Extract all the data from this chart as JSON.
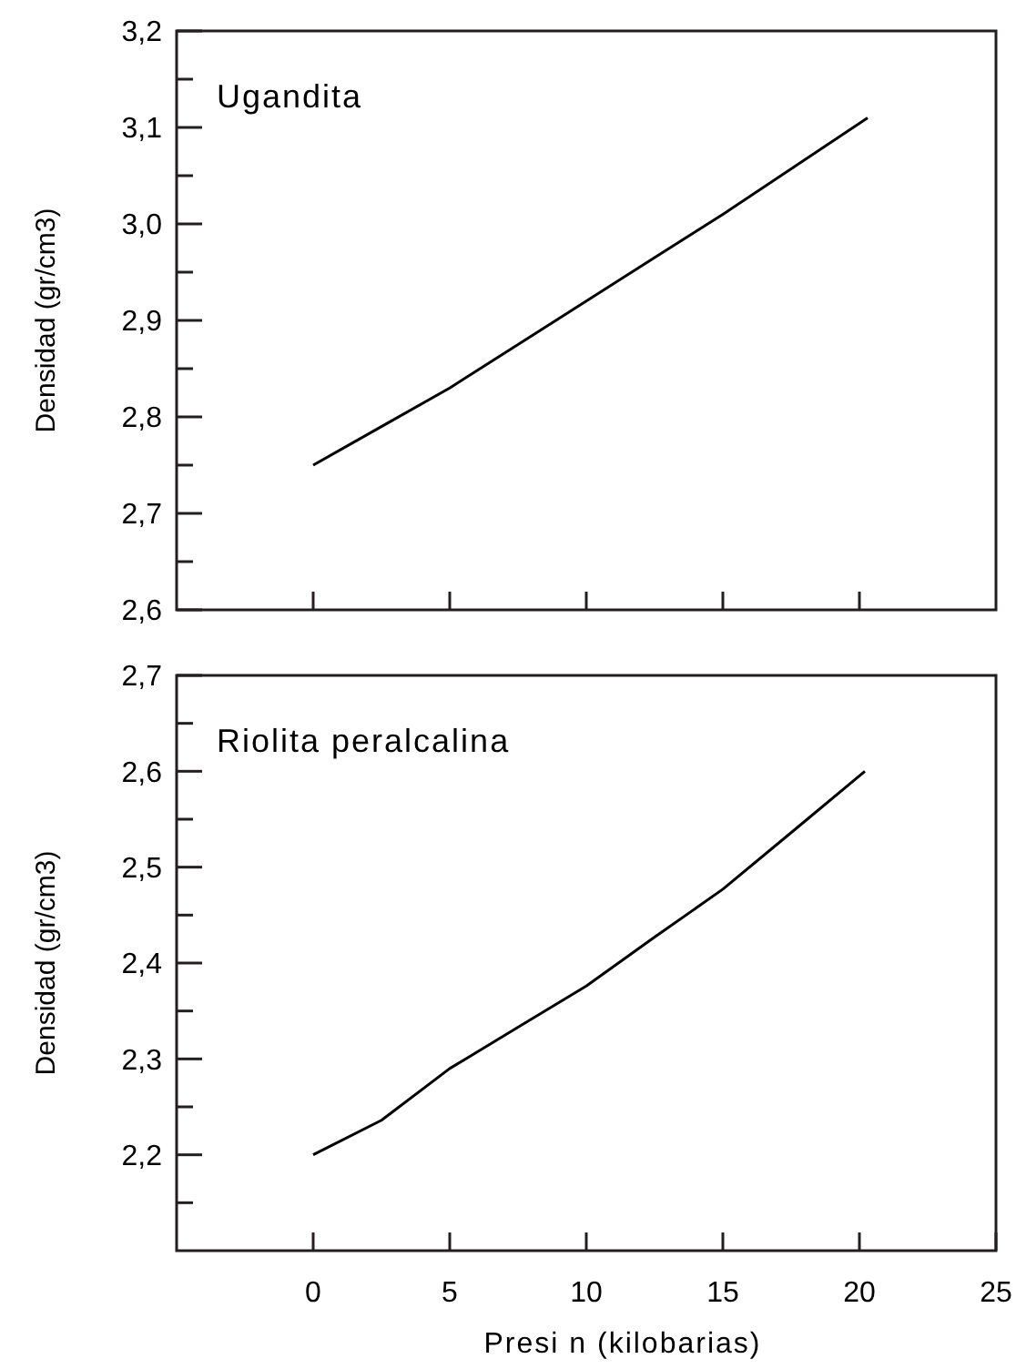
{
  "chart_data": [
    {
      "type": "line",
      "title": "Ugandita",
      "ylabel": "Densidad (gr/cm3)",
      "x": [
        0,
        2.5,
        5,
        7.5,
        10,
        12.5,
        15,
        17.5,
        20.3
      ],
      "values": [
        2.75,
        2.79,
        2.83,
        2.875,
        2.92,
        2.965,
        3.01,
        3.057,
        3.11
      ],
      "color": "#000000",
      "xlim": [
        -5,
        25
      ],
      "xticks": [
        {
          "value": 0,
          "label": null
        },
        {
          "value": 5,
          "label": null
        },
        {
          "value": 10,
          "label": null
        },
        {
          "value": 15,
          "label": null
        },
        {
          "value": 20,
          "label": null
        }
      ],
      "ylim": [
        2.6,
        3.2
      ],
      "yticks": [
        {
          "value": 2.6,
          "label": "2,6"
        },
        {
          "value": 2.65,
          "label": null
        },
        {
          "value": 2.7,
          "label": "2,7"
        },
        {
          "value": 2.75,
          "label": null
        },
        {
          "value": 2.8,
          "label": "2,8"
        },
        {
          "value": 2.85,
          "label": null
        },
        {
          "value": 2.9,
          "label": "2,9"
        },
        {
          "value": 2.95,
          "label": null
        },
        {
          "value": 3.0,
          "label": "3,0"
        },
        {
          "value": 3.05,
          "label": null
        },
        {
          "value": 3.1,
          "label": "3,1"
        },
        {
          "value": 3.15,
          "label": null
        },
        {
          "value": 3.2,
          "label": "3,2"
        }
      ],
      "tick_labels": "y",
      "marker": "none",
      "line_style": "solid"
    },
    {
      "type": "line",
      "title": "Riolita peralcalina",
      "ylabel": "Densidad (gr/cm3)",
      "xlabel": "Presi  n (kilobarias)",
      "x": [
        0,
        2.5,
        5,
        7.5,
        10,
        12.5,
        15,
        17.5,
        20.2
      ],
      "values": [
        2.2,
        2.236,
        2.29,
        2.333,
        2.376,
        2.427,
        2.477,
        2.536,
        2.6
      ],
      "color": "#000000",
      "xlim": [
        -5,
        25
      ],
      "xticks": [
        0,
        5,
        10,
        15,
        20,
        25
      ],
      "ylim": [
        2.1,
        2.7
      ],
      "yticks": [
        {
          "value": 2.15,
          "label": null
        },
        {
          "value": 2.2,
          "label": "2,2"
        },
        {
          "value": 2.25,
          "label": null
        },
        {
          "value": 2.3,
          "label": "2,3"
        },
        {
          "value": 2.35,
          "label": null
        },
        {
          "value": 2.4,
          "label": "2,4"
        },
        {
          "value": 2.45,
          "label": null
        },
        {
          "value": 2.5,
          "label": "2,5"
        },
        {
          "value": 2.55,
          "label": null
        },
        {
          "value": 2.6,
          "label": "2,6"
        },
        {
          "value": 2.65,
          "label": null
        },
        {
          "value": 2.7,
          "label": "2,7"
        }
      ],
      "marker": "none",
      "line_style": "solid"
    }
  ]
}
